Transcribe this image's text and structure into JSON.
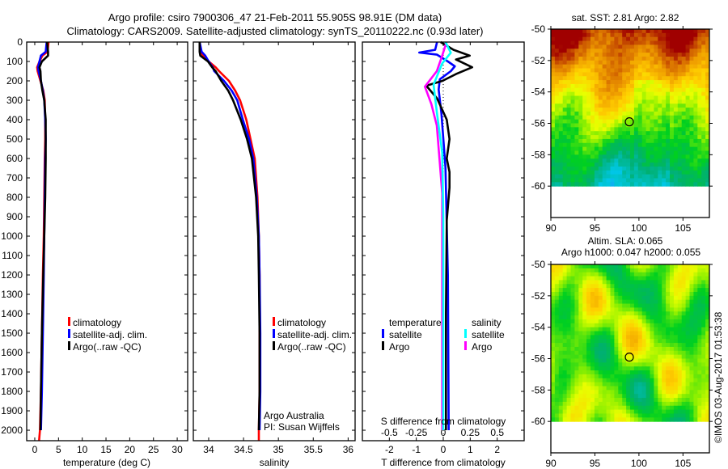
{
  "title": {
    "line1": "Argo profile: csiro 7900306_47 21-Feb-2011 55.905S 98.91E (DM data)",
    "line2": "Climatology: CARS2009. Satellite-adjusted climatology: synTS_20110222.nc (0.93d later)"
  },
  "credit": {
    "argo_group": "Argo Australia",
    "pi": "PI: Susan Wijffels",
    "stamp": "©IMOS 03-Aug-2017 01:53:38"
  },
  "colors": {
    "climatology": "#ff0000",
    "satellite": "#0000ff",
    "argo": "#000000",
    "sal_satellite": "#00ffff",
    "sal_argo": "#ff00ff"
  },
  "chart_data": [
    {
      "type": "line",
      "xlabel": "temperature (deg C)",
      "ylabel": "depth",
      "xlim": [
        -1.7,
        32.2
      ],
      "ylim": [
        2054,
        0
      ],
      "xticks": [
        0,
        5,
        10,
        15,
        20,
        25,
        30
      ],
      "yticks": [
        0,
        100,
        200,
        300,
        400,
        500,
        600,
        700,
        800,
        900,
        1000,
        1100,
        1200,
        1300,
        1400,
        1500,
        1600,
        1700,
        1800,
        1900,
        2000
      ],
      "legend": [
        "climatology",
        "satellite-adj. clim.",
        "Argo(..raw -QC)"
      ],
      "series": [
        {
          "name": "climatology",
          "color": "#ff0000",
          "depth": [
            0,
            50,
            70,
            100,
            130,
            150,
            200,
            250,
            300,
            400,
            500,
            600,
            800,
            1000,
            1200,
            1500,
            1800,
            2000,
            2054
          ],
          "values": [
            2.9,
            2.7,
            1.6,
            1.0,
            0.5,
            0.6,
            1.2,
            1.8,
            2.1,
            2.2,
            2.2,
            2.1,
            2.0,
            1.9,
            1.7,
            1.5,
            1.3,
            1.1,
            0.9
          ]
        },
        {
          "name": "satellite-adj. clim.",
          "color": "#0000ff",
          "depth": [
            0,
            50,
            70,
            100,
            130,
            150,
            200,
            250,
            300,
            400,
            500,
            600,
            800,
            1000,
            1200,
            1500,
            1800,
            2000
          ],
          "values": [
            2.5,
            2.3,
            1.3,
            1.0,
            0.7,
            0.8,
            1.3,
            1.7,
            2.0,
            2.2,
            2.3,
            2.2,
            2.1,
            2.0,
            1.9,
            1.7,
            1.5,
            1.3
          ]
        },
        {
          "name": "Argo(..raw -QC)",
          "color": "#000000",
          "depth": [
            0,
            50,
            70,
            100,
            130,
            150,
            200,
            250,
            300,
            400,
            500,
            600,
            800,
            1000,
            1200,
            1500,
            1800,
            2000
          ],
          "values": [
            2.6,
            2.8,
            2.8,
            1.5,
            1.0,
            1.2,
            1.3,
            1.6,
            2.0,
            2.3,
            2.3,
            2.3,
            2.2,
            2.0,
            1.8,
            1.5,
            1.3,
            1.2
          ]
        }
      ]
    },
    {
      "type": "line",
      "xlabel": "salinity",
      "xlim": [
        33.78,
        36.1
      ],
      "ylim": [
        2054,
        0
      ],
      "xticks": [
        34,
        34.5,
        35,
        35.5,
        36
      ],
      "legend": [
        "climatology",
        "satellite-adj. clim.",
        "Argo(..raw -QC)"
      ],
      "series": [
        {
          "name": "climatology",
          "color": "#ff0000",
          "depth": [
            0,
            50,
            70,
            100,
            130,
            150,
            200,
            250,
            300,
            400,
            500,
            600,
            800,
            1000,
            1200,
            1500,
            1800,
            2000,
            2054
          ],
          "values": [
            33.87,
            33.88,
            33.92,
            34.0,
            34.1,
            34.15,
            34.29,
            34.38,
            34.45,
            34.54,
            34.6,
            34.66,
            34.7,
            34.72,
            34.73,
            34.73,
            34.73,
            34.72,
            34.72
          ]
        },
        {
          "name": "satellite-adj. clim.",
          "color": "#0000ff",
          "depth": [
            0,
            50,
            70,
            100,
            130,
            150,
            200,
            250,
            300,
            400,
            500,
            600,
            800,
            1000,
            1200,
            1500,
            1800,
            2000
          ],
          "values": [
            33.87,
            33.9,
            33.95,
            34.0,
            34.06,
            34.08,
            34.22,
            34.33,
            34.41,
            34.49,
            34.58,
            34.64,
            34.69,
            34.72,
            34.73,
            34.74,
            34.74,
            34.73
          ]
        },
        {
          "name": "Argo(..raw -QC)",
          "color": "#000000",
          "depth": [
            0,
            50,
            70,
            100,
            130,
            150,
            200,
            250,
            300,
            400,
            500,
            600,
            800,
            1000,
            1200,
            1500,
            1800,
            2000
          ],
          "values": [
            33.87,
            33.87,
            33.88,
            33.99,
            34.05,
            34.1,
            34.18,
            34.28,
            34.35,
            34.46,
            34.55,
            34.62,
            34.68,
            34.71,
            34.72,
            34.73,
            34.73,
            34.72
          ]
        }
      ]
    },
    {
      "type": "line",
      "xlabel": "T difference from climatology",
      "x2label": "S difference from climatology",
      "xlim": [
        -3,
        3
      ],
      "x2lim": [
        -0.75,
        0.75
      ],
      "ylim": [
        2054,
        0
      ],
      "xticks": [
        -2,
        -1,
        0,
        1,
        2
      ],
      "x2ticks": [
        -0.5,
        -0.25,
        0,
        0.25,
        0.5
      ],
      "x2ticklabels": [
        "-0.5",
        "-0.25",
        "0",
        "0.25",
        "0.5"
      ],
      "legend_groups": [
        {
          "heading": "temperature",
          "items": [
            "satellite",
            "Argo"
          ]
        },
        {
          "heading": "salinity",
          "items": [
            "satellite",
            "Argo"
          ]
        }
      ],
      "series": [
        {
          "name": "T satellite",
          "axis": "T",
          "color": "#0000ff",
          "depth": [
            0,
            40,
            54,
            65,
            100,
            125,
            150,
            192,
            245,
            367,
            645,
            1200,
            2000
          ],
          "values": [
            -0.23,
            -0.3,
            -0.89,
            -0.23,
            0.17,
            0.43,
            0.28,
            -0.13,
            -0.17,
            -0.07,
            0.08,
            0.17,
            0.2
          ]
        },
        {
          "name": "T Argo",
          "axis": "T",
          "color": "#000000",
          "depth": [
            0,
            40,
            70,
            90,
            130,
            165,
            200,
            225,
            290,
            400,
            500,
            600,
            670,
            750,
            920,
            1400,
            2000
          ],
          "values": [
            -0.1,
            0.38,
            0.98,
            0.47,
            1.07,
            0.47,
            -0.03,
            -0.63,
            -0.23,
            0.13,
            0.23,
            0.13,
            0.23,
            0.23,
            0.13,
            0.1,
            0.1
          ]
        },
        {
          "name": "S Argo",
          "axis": "S",
          "color": "#ff00ff",
          "depth": [
            0,
            70,
            150,
            230,
            320,
            430,
            570,
            780,
            1200,
            2000
          ],
          "values": [
            0.03,
            -0.01,
            -0.06,
            -0.17,
            -0.11,
            -0.06,
            -0.04,
            -0.01,
            -0.01,
            -0.01
          ]
        },
        {
          "name": "S satellite",
          "axis": "S",
          "color": "#00ffff",
          "depth": [
            0,
            55,
            110,
            220,
            360,
            570,
            900,
            2000
          ],
          "values": [
            0.02,
            0.07,
            -0.01,
            -0.09,
            -0.06,
            -0.01,
            0.0,
            0.0
          ]
        }
      ]
    },
    {
      "type": "heatmap",
      "title": "sat. SST: 2.81  Argo: 2.82",
      "xlim": [
        90,
        108
      ],
      "ylim": [
        -62,
        -50
      ],
      "xticks": [
        90,
        95,
        100,
        105
      ],
      "yticks": [
        -50,
        -52,
        -54,
        -56,
        -58,
        -60
      ],
      "data_lat_range": [
        -60,
        -50
      ],
      "marker": {
        "lon": 98.91,
        "lat": -55.905
      }
    },
    {
      "type": "heatmap",
      "title": "Altim. SLA: 0.065",
      "subtitle": "Argo h1000: 0.047  h2000: 0.055",
      "xlim": [
        90,
        108
      ],
      "ylim": [
        -62,
        -50
      ],
      "xticks": [
        90,
        95,
        100,
        105
      ],
      "yticks": [
        -50,
        -52,
        -54,
        -56,
        -58,
        -60
      ],
      "data_lat_range": [
        -60,
        -50
      ],
      "marker": {
        "lon": 98.91,
        "lat": -55.905
      }
    }
  ]
}
